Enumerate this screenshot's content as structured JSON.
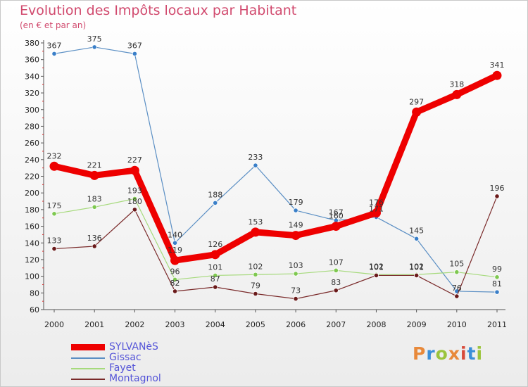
{
  "title": "Evolution des Impôts locaux par Habitant",
  "subtitle": "(en € et par an)",
  "logo_text": "Proxiti",
  "colors": {
    "title": "#d14a6e",
    "axis": "#555555",
    "legend_text": "#5555d8",
    "logo": [
      "#e8893a",
      "#3a8fd8",
      "#9bc43c",
      "#e8893a",
      "#d84a3a",
      "#3a8fd8",
      "#9bc43c"
    ]
  },
  "chart_data": {
    "type": "line",
    "title": "Evolution des Impôts locaux par Habitant",
    "subtitle": "(en € et par an)",
    "xlabel": "",
    "ylabel": "",
    "categories": [
      "2000",
      "2001",
      "2002",
      "2003",
      "2004",
      "2005",
      "2006",
      "2007",
      "2008",
      "2009",
      "2010",
      "2011"
    ],
    "ylim": [
      60,
      380
    ],
    "yticks": [
      60,
      80,
      100,
      120,
      140,
      160,
      180,
      200,
      220,
      240,
      260,
      280,
      300,
      320,
      340,
      360,
      380
    ],
    "grid": false,
    "legend_position": "bottom-left",
    "series": [
      {
        "name": "Gissac",
        "color": "#5b8fc4",
        "marker": "#3a7fc8",
        "width": 1.2,
        "values": [
          367,
          375,
          367,
          140,
          188,
          233,
          179,
          167,
          171,
          145,
          82,
          81
        ],
        "labels": [
          "367",
          "375",
          "367",
          "140",
          "188",
          "233",
          "179",
          "167",
          "171",
          "145",
          "",
          "81"
        ]
      },
      {
        "name": "Fayet",
        "color": "#a6da7c",
        "marker": "#7ec850",
        "width": 1.2,
        "values": [
          175,
          183,
          193,
          96,
          101,
          102,
          103,
          107,
          102,
          102,
          105,
          99
        ],
        "labels": [
          "175",
          "183",
          "193",
          "96",
          "101",
          "102",
          "103",
          "107",
          "102",
          "102",
          "105",
          "99"
        ]
      },
      {
        "name": "Montagnol",
        "color": "#7a2a2a",
        "marker": "#6a1a1a",
        "width": 1.2,
        "values": [
          133,
          136,
          180,
          82,
          87,
          79,
          73,
          83,
          101,
          101,
          76,
          196
        ],
        "labels": [
          "133",
          "136",
          "180",
          "82",
          "87",
          "79",
          "73",
          "83",
          "101",
          "101",
          "76",
          "196"
        ]
      },
      {
        "name": "SYLVANèS",
        "color": "#ee0000",
        "marker": "#ee0000",
        "width": 9,
        "values": [
          232,
          221,
          227,
          119,
          126,
          153,
          149,
          160,
          176,
          297,
          318,
          341
        ],
        "labels": [
          "232",
          "221",
          "227",
          "119",
          "126",
          "153",
          "149",
          "160",
          "176",
          "297",
          "318",
          "341"
        ]
      }
    ],
    "legend": [
      "SYLVANèS",
      "Gissac",
      "Fayet",
      "Montagnol"
    ]
  }
}
